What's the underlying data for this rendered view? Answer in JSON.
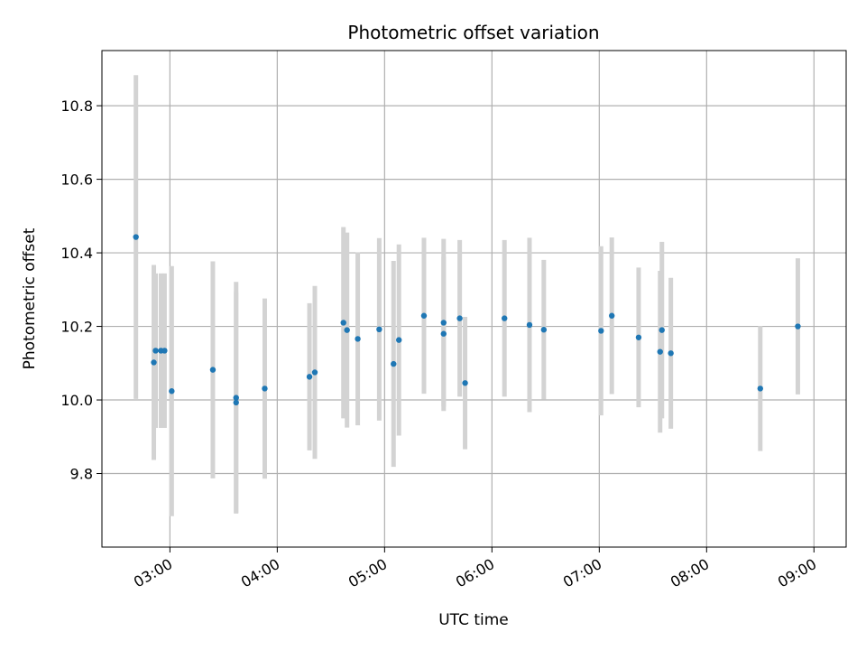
{
  "chart_data": {
    "type": "scatter",
    "title": "Photometric offset variation",
    "xlabel": "UTC time",
    "ylabel": "Photometric offset",
    "xlim": [
      "02:22",
      "09:18"
    ],
    "ylim": [
      9.6,
      10.95
    ],
    "x_ticks": [
      "03:00",
      "04:00",
      "05:00",
      "06:00",
      "07:00",
      "08:00",
      "09:00"
    ],
    "y_ticks": [
      "9.8",
      "10.0",
      "10.2",
      "10.4",
      "10.6",
      "10.8"
    ],
    "grid": true,
    "colors": {
      "point": "#1f77b4",
      "errorbar": "#d3d3d3",
      "grid": "#b0b0b0"
    },
    "points": [
      {
        "x": "02:41",
        "y": 10.443,
        "yerr": 0.44
      },
      {
        "x": "02:51",
        "y": 10.102,
        "yerr": 0.265
      },
      {
        "x": "02:52",
        "y": 10.134,
        "yerr": 0.21
      },
      {
        "x": "02:55",
        "y": 10.134,
        "yerr": 0.21
      },
      {
        "x": "02:57",
        "y": 10.134,
        "yerr": 0.21
      },
      {
        "x": "03:01",
        "y": 10.024,
        "yerr": 0.34
      },
      {
        "x": "03:24",
        "y": 10.082,
        "yerr": 0.295
      },
      {
        "x": "03:37",
        "y": 10.006,
        "yerr": 0.315
      },
      {
        "x": "03:37",
        "y": 9.993,
        "yerr": 0.3
      },
      {
        "x": "03:53",
        "y": 10.031,
        "yerr": 0.245
      },
      {
        "x": "04:18",
        "y": 10.063,
        "yerr": 0.2
      },
      {
        "x": "04:21",
        "y": 10.075,
        "yerr": 0.235
      },
      {
        "x": "04:37",
        "y": 10.21,
        "yerr": 0.26
      },
      {
        "x": "04:39",
        "y": 10.19,
        "yerr": 0.265
      },
      {
        "x": "04:45",
        "y": 10.166,
        "yerr": 0.235
      },
      {
        "x": "04:57",
        "y": 10.192,
        "yerr": 0.248
      },
      {
        "x": "05:05",
        "y": 10.098,
        "yerr": 0.28
      },
      {
        "x": "05:08",
        "y": 10.163,
        "yerr": 0.26
      },
      {
        "x": "05:22",
        "y": 10.229,
        "yerr": 0.212
      },
      {
        "x": "05:33",
        "y": 10.21,
        "yerr": 0.228
      },
      {
        "x": "05:33",
        "y": 10.18,
        "yerr": 0.21
      },
      {
        "x": "05:42",
        "y": 10.222,
        "yerr": 0.213
      },
      {
        "x": "05:45",
        "y": 10.046,
        "yerr": 0.18
      },
      {
        "x": "06:07",
        "y": 10.222,
        "yerr": 0.213
      },
      {
        "x": "06:21",
        "y": 10.204,
        "yerr": 0.237
      },
      {
        "x": "06:29",
        "y": 10.191,
        "yerr": 0.19
      },
      {
        "x": "07:01",
        "y": 10.188,
        "yerr": 0.23
      },
      {
        "x": "07:07",
        "y": 10.229,
        "yerr": 0.213
      },
      {
        "x": "07:22",
        "y": 10.17,
        "yerr": 0.19
      },
      {
        "x": "07:34",
        "y": 10.131,
        "yerr": 0.22
      },
      {
        "x": "07:35",
        "y": 10.19,
        "yerr": 0.24
      },
      {
        "x": "07:40",
        "y": 10.127,
        "yerr": 0.205
      },
      {
        "x": "08:30",
        "y": 10.031,
        "yerr": 0.17
      },
      {
        "x": "08:51",
        "y": 10.2,
        "yerr": 0.185
      }
    ]
  }
}
